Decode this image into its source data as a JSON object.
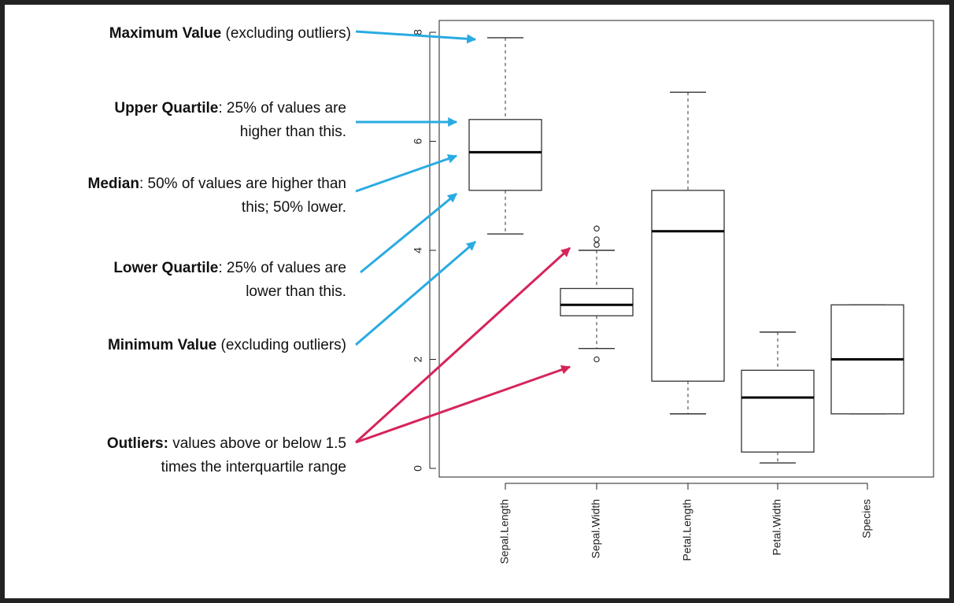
{
  "annotations": {
    "maximum": {
      "bold": "Maximum Value",
      "rest": " (excluding outliers)"
    },
    "upper_quartile": {
      "bold": "Upper Quartile",
      "rest": ": 25% of values are",
      "line2": "higher than this."
    },
    "median": {
      "bold": "Median",
      "rest": ": 50% of values are higher than",
      "line2": "this; 50% lower."
    },
    "lower_quartile": {
      "bold": "Lower Quartile",
      "rest": ": 25% of values are",
      "line2": "lower than this."
    },
    "minimum": {
      "bold": "Minimum Value",
      "rest": " (excluding outliers)"
    },
    "outliers": {
      "bold": "Outliers:",
      "rest": " values above or below 1.5",
      "line2": "times the interquartile range"
    }
  },
  "colors": {
    "annotation_arrow": "#29abe2",
    "outlier_arrow": "#d6245a",
    "box": "#333333"
  },
  "chart_data": {
    "type": "box",
    "title": "",
    "xlabel": "",
    "ylabel": "",
    "ylim": [
      0,
      8
    ],
    "yticks": [
      0,
      2,
      4,
      6,
      8
    ],
    "categories": [
      "Sepal.Length",
      "Sepal.Width",
      "Petal.Length",
      "Petal.Width",
      "Species"
    ],
    "boxes": [
      {
        "min": 4.3,
        "q1": 5.1,
        "median": 5.8,
        "q3": 6.4,
        "max": 7.9,
        "outliers": []
      },
      {
        "min": 2.2,
        "q1": 2.8,
        "median": 3.0,
        "q3": 3.3,
        "max": 4.0,
        "outliers": [
          4.1,
          4.2,
          4.4,
          2.0
        ]
      },
      {
        "min": 1.0,
        "q1": 1.6,
        "median": 4.35,
        "q3": 5.1,
        "max": 6.9,
        "outliers": []
      },
      {
        "min": 0.1,
        "q1": 0.3,
        "median": 1.3,
        "q3": 1.8,
        "max": 2.5,
        "outliers": []
      },
      {
        "min": 1.0,
        "q1": 1.0,
        "median": 2.0,
        "q3": 3.0,
        "max": 3.0,
        "outliers": []
      }
    ]
  }
}
